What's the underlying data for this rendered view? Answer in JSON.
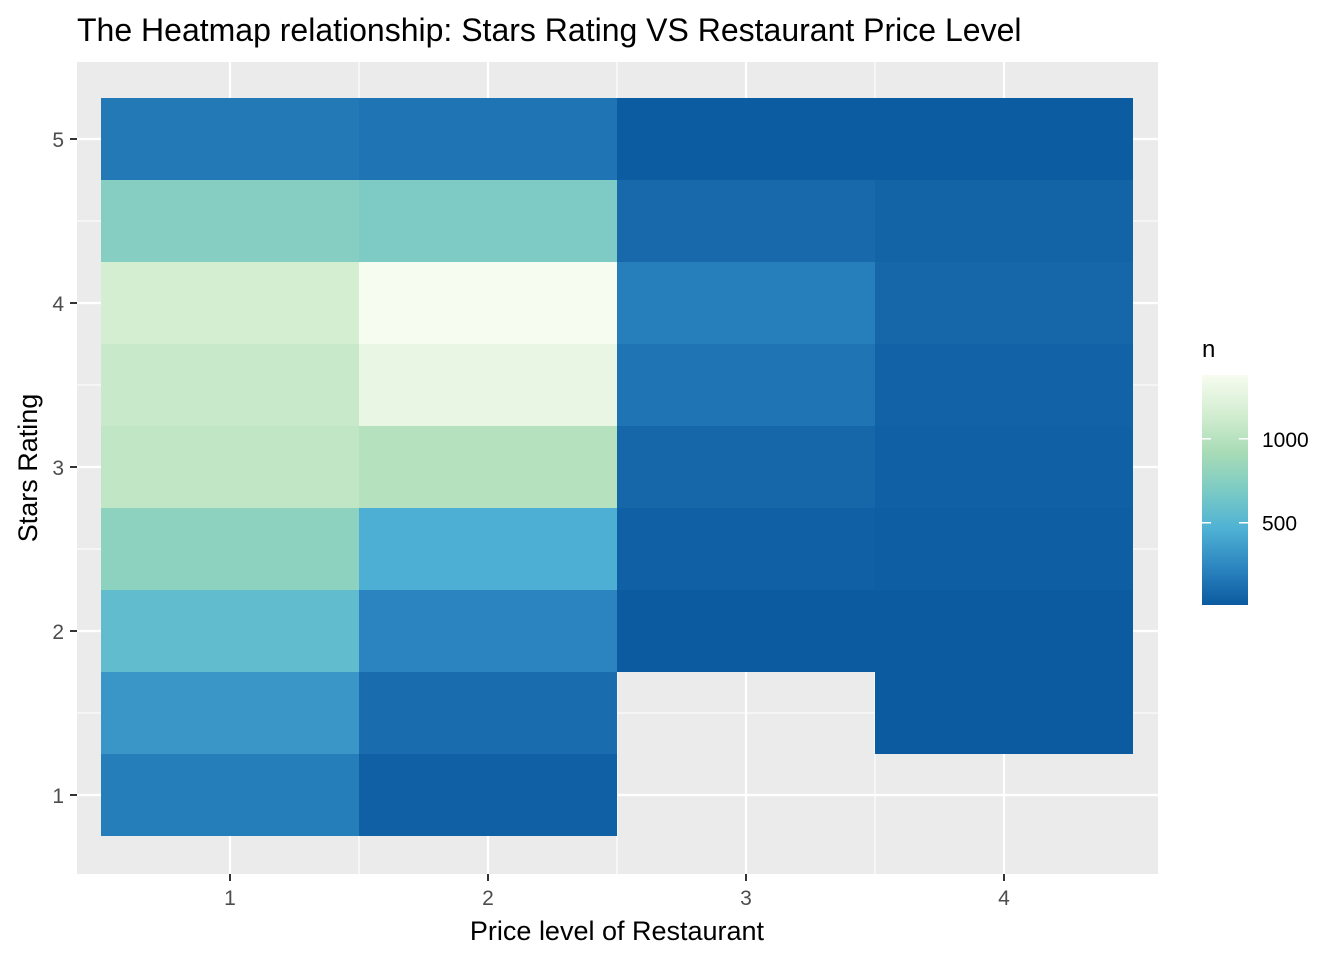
{
  "chart_data": {
    "type": "heatmap",
    "title": "The Heatmap relationship: Stars Rating VS Restaurant Price Level",
    "xlabel": "Price level of Restaurant",
    "ylabel": "Stars Rating",
    "x_ticks": [
      "1",
      "2",
      "3",
      "4"
    ],
    "y_ticks": [
      "1",
      "2",
      "3",
      "4",
      "5"
    ],
    "xlim": [
      0.5,
      4.5
    ],
    "ylim": [
      0.75,
      5.25
    ],
    "grid": true,
    "legend": {
      "title": "n",
      "position": "right",
      "breaks": [
        1000,
        500
      ],
      "range": [
        10,
        1380
      ],
      "colors": [
        "#0b5aa0",
        "#2c86c0",
        "#4fb2d4",
        "#7ccbc4",
        "#a9dcb6",
        "#d4eed2",
        "#f7fcf0"
      ]
    },
    "cells": [
      {
        "x": 1,
        "y": 1.0,
        "n": 190
      },
      {
        "x": 1,
        "y": 1.5,
        "n": 320
      },
      {
        "x": 1,
        "y": 2.0,
        "n": 560
      },
      {
        "x": 1,
        "y": 2.5,
        "n": 780
      },
      {
        "x": 1,
        "y": 3.0,
        "n": 1050
      },
      {
        "x": 1,
        "y": 3.5,
        "n": 1090
      },
      {
        "x": 1,
        "y": 4.0,
        "n": 1150
      },
      {
        "x": 1,
        "y": 4.5,
        "n": 740
      },
      {
        "x": 1,
        "y": 5.0,
        "n": 170
      },
      {
        "x": 2,
        "y": 1.0,
        "n": 40
      },
      {
        "x": 2,
        "y": 1.5,
        "n": 110
      },
      {
        "x": 2,
        "y": 2.0,
        "n": 230
      },
      {
        "x": 2,
        "y": 2.5,
        "n": 450
      },
      {
        "x": 2,
        "y": 3.0,
        "n": 990
      },
      {
        "x": 2,
        "y": 3.5,
        "n": 1280
      },
      {
        "x": 2,
        "y": 4.0,
        "n": 1380
      },
      {
        "x": 2,
        "y": 4.5,
        "n": 700
      },
      {
        "x": 2,
        "y": 5.0,
        "n": 150
      },
      {
        "x": 3,
        "y": 2.0,
        "n": 15
      },
      {
        "x": 3,
        "y": 2.5,
        "n": 40
      },
      {
        "x": 3,
        "y": 3.0,
        "n": 80
      },
      {
        "x": 3,
        "y": 3.5,
        "n": 150
      },
      {
        "x": 3,
        "y": 4.0,
        "n": 200
      },
      {
        "x": 3,
        "y": 4.5,
        "n": 90
      },
      {
        "x": 3,
        "y": 5.0,
        "n": 20
      },
      {
        "x": 4,
        "y": 1.5,
        "n": 15
      },
      {
        "x": 4,
        "y": 2.0,
        "n": 15
      },
      {
        "x": 4,
        "y": 2.5,
        "n": 30
      },
      {
        "x": 4,
        "y": 3.0,
        "n": 40
      },
      {
        "x": 4,
        "y": 3.5,
        "n": 50
      },
      {
        "x": 4,
        "y": 4.0,
        "n": 80
      },
      {
        "x": 4,
        "y": 4.5,
        "n": 60
      },
      {
        "x": 4,
        "y": 5.0,
        "n": 20
      }
    ]
  }
}
